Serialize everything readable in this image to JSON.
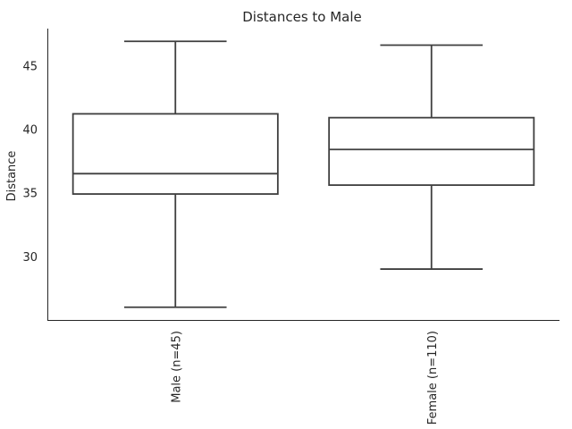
{
  "chart_data": {
    "type": "box",
    "title": "Distances to Male",
    "xlabel": "",
    "ylabel": "Distance",
    "ylim": [
      25.0,
      47.9
    ],
    "yticks": [
      30,
      35,
      40,
      45
    ],
    "grid": false,
    "categories": [
      "Male (n=45)",
      "Female (n=110)"
    ],
    "boxes": [
      {
        "category": "Male (n=45)",
        "whisker_low": 26.0,
        "q1": 34.9,
        "median": 36.5,
        "q3": 41.2,
        "whisker_high": 46.9
      },
      {
        "category": "Female (n=110)",
        "whisker_low": 29.0,
        "q1": 35.6,
        "median": 38.4,
        "q3": 40.9,
        "whisker_high": 46.6
      }
    ]
  }
}
